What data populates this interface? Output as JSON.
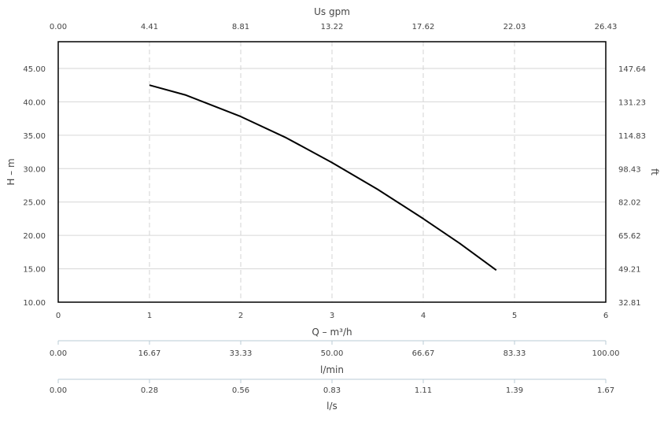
{
  "chart_data": {
    "type": "line",
    "series": [
      {
        "x": [
          1.0,
          1.4,
          2.0,
          2.5,
          3.0,
          3.5,
          4.0,
          4.4,
          4.8
        ],
        "y": [
          42.5,
          41.0,
          37.8,
          34.6,
          30.9,
          26.9,
          22.5,
          18.8,
          14.8
        ]
      }
    ],
    "color": "#000000",
    "grid": true,
    "axes": {
      "x": {
        "label": "Q – m³/h",
        "lim": [
          0,
          6
        ],
        "ticks": [
          "0",
          "1",
          "2",
          "3",
          "4",
          "5",
          "6"
        ]
      },
      "x_top": {
        "label": "Us gpm",
        "ticks": [
          "0.00",
          "4.41",
          "8.81",
          "13.22",
          "17.62",
          "22.03",
          "26.43"
        ]
      },
      "y": {
        "label": "H – m",
        "lim": [
          10,
          49
        ],
        "ticks": [
          "10.00",
          "15.00",
          "20.00",
          "25.00",
          "30.00",
          "35.00",
          "40.00",
          "45.00"
        ]
      },
      "y_right": {
        "label": "ft",
        "ticks": [
          "32.81",
          "49.21",
          "65.62",
          "82.02",
          "98.43",
          "114.83",
          "131.23",
          "147.64"
        ]
      },
      "x_lmin": {
        "label": "l/min",
        "ticks": [
          "0.00",
          "16.67",
          "33.33",
          "50.00",
          "66.67",
          "83.33",
          "100.00"
        ]
      },
      "x_ls": {
        "label": "l/s",
        "ticks": [
          "0.00",
          "0.28",
          "0.56",
          "0.83",
          "1.11",
          "1.39",
          "1.67"
        ]
      }
    }
  }
}
